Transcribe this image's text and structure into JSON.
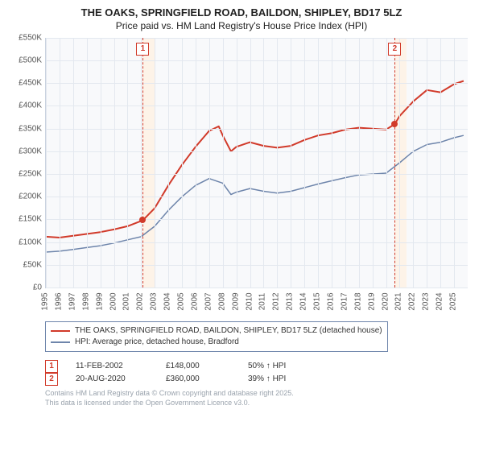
{
  "title_line1": "THE OAKS, SPRINGFIELD ROAD, BAILDON, SHIPLEY, BD17 5LZ",
  "title_line2": "Price paid vs. HM Land Registry's House Price Index (HPI)",
  "chart": {
    "type": "line",
    "background_color": "#f8f9fb",
    "grid_color": "#e3e8ef",
    "axis_color": "#c9d3e0",
    "x": {
      "min": 1995,
      "max": 2026,
      "ticks": [
        1995,
        1996,
        1997,
        1998,
        1999,
        2000,
        2001,
        2002,
        2003,
        2004,
        2005,
        2006,
        2007,
        2008,
        2009,
        2010,
        2011,
        2012,
        2013,
        2014,
        2015,
        2016,
        2017,
        2018,
        2019,
        2020,
        2021,
        2022,
        2023,
        2024,
        2025
      ]
    },
    "y": {
      "min": 0,
      "max": 550000,
      "tick_step": 50000,
      "ticks_k": [
        "£0",
        "£50K",
        "£100K",
        "£150K",
        "£200K",
        "£250K",
        "£300K",
        "£350K",
        "£400K",
        "£450K",
        "£500K",
        "£550K"
      ]
    },
    "highlight_bands": [
      {
        "from": 2002.12,
        "to": 2003.0,
        "color": "#fdf3e8"
      },
      {
        "from": 2020.64,
        "to": 2021.5,
        "color": "#fdf3e8"
      }
    ],
    "series": [
      {
        "name": "price_paid",
        "label": "THE OAKS, SPRINGFIELD ROAD, BAILDON, SHIPLEY, BD17 5LZ (detached house)",
        "color": "#d13a2a",
        "line_width": 2,
        "points": [
          [
            1995,
            112000
          ],
          [
            1996,
            110000
          ],
          [
            1997,
            114000
          ],
          [
            1998,
            118000
          ],
          [
            1999,
            122000
          ],
          [
            2000,
            128000
          ],
          [
            2001,
            135000
          ],
          [
            2002.12,
            148000
          ],
          [
            2003,
            175000
          ],
          [
            2004,
            225000
          ],
          [
            2005,
            270000
          ],
          [
            2006,
            310000
          ],
          [
            2007,
            345000
          ],
          [
            2007.7,
            355000
          ],
          [
            2008,
            335000
          ],
          [
            2008.6,
            300000
          ],
          [
            2009,
            310000
          ],
          [
            2010,
            320000
          ],
          [
            2011,
            312000
          ],
          [
            2012,
            308000
          ],
          [
            2013,
            312000
          ],
          [
            2014,
            325000
          ],
          [
            2015,
            335000
          ],
          [
            2016,
            340000
          ],
          [
            2017,
            348000
          ],
          [
            2018,
            352000
          ],
          [
            2019,
            350000
          ],
          [
            2020,
            348000
          ],
          [
            2020.64,
            360000
          ],
          [
            2021,
            378000
          ],
          [
            2022,
            410000
          ],
          [
            2023,
            435000
          ],
          [
            2024,
            430000
          ],
          [
            2025,
            448000
          ],
          [
            2025.7,
            455000
          ]
        ]
      },
      {
        "name": "hpi",
        "label": "HPI: Average price, detached house, Bradford",
        "color": "#6e85ab",
        "line_width": 1.5,
        "points": [
          [
            1995,
            78000
          ],
          [
            1996,
            80000
          ],
          [
            1997,
            84000
          ],
          [
            1998,
            88000
          ],
          [
            1999,
            92000
          ],
          [
            2000,
            98000
          ],
          [
            2001,
            105000
          ],
          [
            2002,
            112000
          ],
          [
            2003,
            135000
          ],
          [
            2004,
            170000
          ],
          [
            2005,
            200000
          ],
          [
            2006,
            225000
          ],
          [
            2007,
            240000
          ],
          [
            2008,
            230000
          ],
          [
            2008.6,
            205000
          ],
          [
            2009,
            210000
          ],
          [
            2010,
            218000
          ],
          [
            2011,
            212000
          ],
          [
            2012,
            208000
          ],
          [
            2013,
            212000
          ],
          [
            2014,
            220000
          ],
          [
            2015,
            228000
          ],
          [
            2016,
            235000
          ],
          [
            2017,
            242000
          ],
          [
            2018,
            248000
          ],
          [
            2019,
            250000
          ],
          [
            2020,
            252000
          ],
          [
            2021,
            275000
          ],
          [
            2022,
            300000
          ],
          [
            2023,
            315000
          ],
          [
            2024,
            320000
          ],
          [
            2025,
            330000
          ],
          [
            2025.7,
            335000
          ]
        ]
      }
    ],
    "sale_markers": [
      {
        "n": "1",
        "x": 2002.12,
        "y": 148000
      },
      {
        "n": "2",
        "x": 2020.64,
        "y": 360000
      }
    ]
  },
  "legend": {
    "items": [
      {
        "color": "#d13a2a",
        "text": "THE OAKS, SPRINGFIELD ROAD, BAILDON, SHIPLEY, BD17 5LZ (detached house)"
      },
      {
        "color": "#6e85ab",
        "text": "HPI: Average price, detached house, Bradford"
      }
    ]
  },
  "sales_rows": [
    {
      "n": "1",
      "date": "11-FEB-2002",
      "price": "£148,000",
      "delta": "50% ↑ HPI"
    },
    {
      "n": "2",
      "date": "20-AUG-2020",
      "price": "£360,000",
      "delta": "39% ↑ HPI"
    }
  ],
  "footer_line1": "Contains HM Land Registry data © Crown copyright and database right 2025.",
  "footer_line2": "This data is licensed under the Open Government Licence v3.0."
}
